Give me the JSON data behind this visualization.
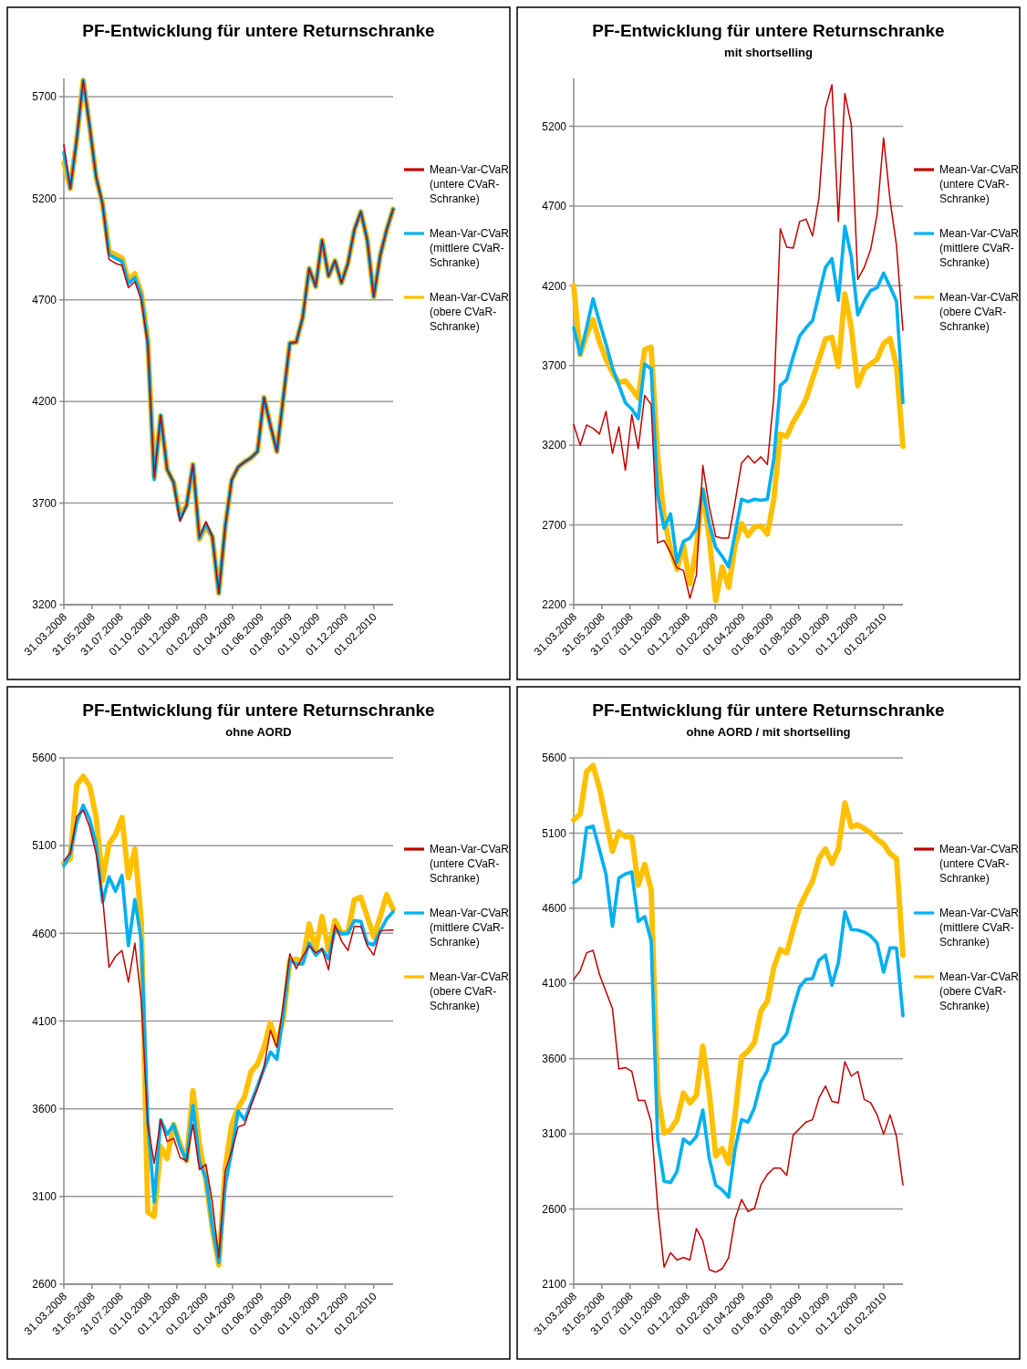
{
  "chart_data": [
    {
      "type": "line",
      "title": "PF-Entwicklung für untere Returnschranke",
      "x": [
        "2008-03-31",
        "2008-04-14",
        "2008-04-28",
        "2008-05-12",
        "2008-05-26",
        "2008-06-09",
        "2008-06-23",
        "2008-07-07",
        "2008-07-21",
        "2008-08-04",
        "2008-08-18",
        "2008-09-01",
        "2008-09-15",
        "2008-09-29",
        "2008-10-13",
        "2008-10-27",
        "2008-11-10",
        "2008-11-24",
        "2008-12-08",
        "2008-12-22",
        "2009-01-05",
        "2009-01-19",
        "2009-02-02",
        "2009-02-16",
        "2009-03-02",
        "2009-03-16",
        "2009-03-30",
        "2009-04-13",
        "2009-04-27",
        "2009-05-11",
        "2009-05-25",
        "2009-06-08",
        "2009-06-22",
        "2009-07-06",
        "2009-07-20",
        "2009-08-03",
        "2009-08-17",
        "2009-08-31",
        "2009-09-14",
        "2009-09-28",
        "2009-10-12",
        "2009-10-26",
        "2009-11-09",
        "2009-11-23",
        "2009-12-07",
        "2009-12-21",
        "2010-01-04",
        "2010-01-18",
        "2010-02-01",
        "2010-02-15",
        "2010-03-01",
        "2010-03-15"
      ],
      "xlim": [
        "2008-03-31",
        "2010-03-15"
      ],
      "xticks": [
        {
          "value": "2008-03-31",
          "label": "31.03.2008"
        },
        {
          "value": "2008-05-31",
          "label": "31.05.2008"
        },
        {
          "value": "2008-07-31",
          "label": "31.07.2008"
        },
        {
          "value": "2008-10-01",
          "label": "01.10.2008"
        },
        {
          "value": "2008-12-01",
          "label": "01.12.2008"
        },
        {
          "value": "2009-02-01",
          "label": "01.02.2009"
        },
        {
          "value": "2009-04-01",
          "label": "01.04.2009"
        },
        {
          "value": "2009-06-01",
          "label": "01.06.2009"
        },
        {
          "value": "2009-08-01",
          "label": "01.08.2009"
        },
        {
          "value": "2009-10-01",
          "label": "01.10.2009"
        },
        {
          "value": "2009-12-01",
          "label": "01.12.2009"
        },
        {
          "value": "2010-02-01",
          "label": "01.02.2010"
        }
      ],
      "ylim": [
        3200,
        5790
      ],
      "yticks": [
        3200,
        3700,
        4200,
        4700,
        5200,
        5700
      ],
      "grid": "y",
      "legend": "right",
      "series": [
        {
          "name": "Mean-Var-CVaR (untere CVaR-Schranke)",
          "color": "#c00000",
          "values": [
            5464,
            5248,
            5492,
            5781,
            5553,
            5304,
            5172,
            4900,
            4880,
            4870,
            4760,
            4790,
            4700,
            4480,
            3827,
            4131,
            3865,
            3802,
            3610,
            3687,
            3890,
            3530,
            3610,
            3535,
            3256,
            3586,
            3814,
            3878,
            3903,
            3923,
            3954,
            4220,
            4081,
            3954,
            4220,
            4487,
            4492,
            4614,
            4855,
            4766,
            4994,
            4817,
            4893,
            4784,
            4880,
            5045,
            5134,
            4994,
            4715,
            4918,
            5045,
            5147
          ]
        },
        {
          "name": "Mean-Var-CVaR (mittlere CVaR-Schranke)",
          "color": "#00b0f0",
          "values": [
            5426,
            5248,
            5492,
            5781,
            5553,
            5304,
            5172,
            4925,
            4905,
            4890,
            4780,
            4810,
            4720,
            4490,
            3815,
            4131,
            3865,
            3802,
            3620,
            3687,
            3890,
            3526,
            3598,
            3535,
            3256,
            3586,
            3814,
            3878,
            3903,
            3923,
            3954,
            4220,
            4081,
            3954,
            4220,
            4487,
            4492,
            4614,
            4855,
            4766,
            4994,
            4817,
            4893,
            4784,
            4880,
            5045,
            5134,
            4994,
            4715,
            4918,
            5045,
            5147
          ]
        },
        {
          "name": "Mean-Var-CVaR (obere CVaR-Schranke)",
          "color": "#ffc000",
          "values": [
            5375,
            5248,
            5492,
            5781,
            5553,
            5304,
            5172,
            4939,
            4923,
            4906,
            4796,
            4829,
            4733,
            4500,
            3827,
            4131,
            3865,
            3802,
            3637,
            3687,
            3890,
            3522,
            3586,
            3535,
            3256,
            3586,
            3814,
            3878,
            3903,
            3923,
            3954,
            4220,
            4081,
            3954,
            4220,
            4487,
            4492,
            4614,
            4855,
            4766,
            4994,
            4817,
            4893,
            4784,
            4880,
            5045,
            5134,
            4994,
            4715,
            4918,
            5045,
            5147
          ]
        }
      ]
    },
    {
      "type": "line",
      "title": "PF-Entwicklung für untere Returnschranke",
      "subtitle": "mit shortselling",
      "x": [
        "2008-03-31",
        "2008-04-14",
        "2008-04-28",
        "2008-05-12",
        "2008-05-26",
        "2008-06-09",
        "2008-06-23",
        "2008-07-07",
        "2008-07-21",
        "2008-08-04",
        "2008-08-18",
        "2008-09-01",
        "2008-09-15",
        "2008-09-29",
        "2008-10-13",
        "2008-10-27",
        "2008-11-10",
        "2008-11-24",
        "2008-12-08",
        "2008-12-22",
        "2009-01-05",
        "2009-01-19",
        "2009-02-02",
        "2009-02-16",
        "2009-03-02",
        "2009-03-16",
        "2009-03-30",
        "2009-04-13",
        "2009-04-27",
        "2009-05-11",
        "2009-05-25",
        "2009-06-08",
        "2009-06-22",
        "2009-07-06",
        "2009-07-20",
        "2009-08-03",
        "2009-08-17",
        "2009-08-31",
        "2009-09-14",
        "2009-09-28",
        "2009-10-12",
        "2009-10-26",
        "2009-11-09",
        "2009-11-23",
        "2009-12-07",
        "2009-12-21",
        "2010-01-04",
        "2010-01-18",
        "2010-02-01",
        "2010-02-15",
        "2010-03-01",
        "2010-03-15"
      ],
      "xlim": [
        "2008-03-31",
        "2010-03-15"
      ],
      "xticks": [
        {
          "value": "2008-03-31",
          "label": "31.03.2008"
        },
        {
          "value": "2008-05-31",
          "label": "31.05.2008"
        },
        {
          "value": "2008-07-31",
          "label": "31.07.2008"
        },
        {
          "value": "2008-10-01",
          "label": "01.10.2008"
        },
        {
          "value": "2008-12-01",
          "label": "01.12.2008"
        },
        {
          "value": "2009-02-01",
          "label": "01.02.2009"
        },
        {
          "value": "2009-04-01",
          "label": "01.04.2009"
        },
        {
          "value": "2009-06-01",
          "label": "01.06.2009"
        },
        {
          "value": "2009-08-01",
          "label": "01.08.2009"
        },
        {
          "value": "2009-10-01",
          "label": "01.10.2009"
        },
        {
          "value": "2009-12-01",
          "label": "01.12.2009"
        },
        {
          "value": "2010-02-01",
          "label": "01.02.2010"
        }
      ],
      "ylim": [
        2200,
        5500
      ],
      "yticks": [
        2200,
        2700,
        3200,
        3700,
        4200,
        4700,
        5200
      ],
      "grid": "y",
      "legend": "right",
      "series": [
        {
          "name": "Mean-Var-CVaR (untere CVaR-Schranke)",
          "color": "#c00000",
          "values": [
            3330,
            3200,
            3327,
            3306,
            3270,
            3412,
            3149,
            3315,
            3043,
            3391,
            3179,
            3512,
            3455,
            2588,
            2603,
            2527,
            2431,
            2415,
            2240,
            2385,
            3073,
            2815,
            2627,
            2618,
            2618,
            2846,
            3088,
            3134,
            3088,
            3127,
            3079,
            3503,
            4558,
            4442,
            4436,
            4603,
            4618,
            4512,
            4755,
            5315,
            5460,
            4603,
            5406,
            5209,
            4240,
            4315,
            4427,
            4649,
            5127,
            4739,
            4452,
            3921
          ]
        },
        {
          "name": "Mean-Var-CVaR (mittlere CVaR-Schranke)",
          "color": "#00b0f0",
          "values": [
            3937,
            3770,
            3937,
            4118,
            3973,
            3836,
            3685,
            3576,
            3467,
            3427,
            3367,
            3709,
            3679,
            2891,
            2679,
            2770,
            2467,
            2597,
            2618,
            2679,
            2921,
            2709,
            2558,
            2503,
            2437,
            2649,
            2861,
            2846,
            2861,
            2855,
            2861,
            3118,
            3573,
            3612,
            3755,
            3885,
            3937,
            3982,
            4149,
            4315,
            4370,
            4109,
            4573,
            4382,
            4018,
            4103,
            4170,
            4188,
            4279,
            4194,
            4103,
            3467
          ]
        },
        {
          "name": "Mean-Var-CVaR (obere CVaR-Schranke)",
          "color": "#ffc000",
          "values": [
            4200,
            3770,
            3891,
            3988,
            3846,
            3740,
            3655,
            3594,
            3603,
            3552,
            3497,
            3800,
            3815,
            3134,
            2755,
            2543,
            2422,
            2573,
            2330,
            2558,
            2921,
            2618,
            2225,
            2437,
            2309,
            2573,
            2709,
            2634,
            2688,
            2694,
            2643,
            2861,
            3270,
            3255,
            3346,
            3412,
            3491,
            3618,
            3739,
            3867,
            3876,
            3694,
            4149,
            3936,
            3573,
            3679,
            3709,
            3740,
            3836,
            3870,
            3694,
            3194
          ]
        }
      ]
    },
    {
      "type": "line",
      "title": "PF-Entwicklung für untere Returnschranke",
      "subtitle": "ohne AORD",
      "x": [
        "2008-03-31",
        "2008-04-14",
        "2008-04-28",
        "2008-05-12",
        "2008-05-26",
        "2008-06-09",
        "2008-06-23",
        "2008-07-07",
        "2008-07-21",
        "2008-08-04",
        "2008-08-18",
        "2008-09-01",
        "2008-09-15",
        "2008-09-29",
        "2008-10-13",
        "2008-10-27",
        "2008-11-10",
        "2008-11-24",
        "2008-12-08",
        "2008-12-22",
        "2009-01-05",
        "2009-01-19",
        "2009-02-02",
        "2009-02-16",
        "2009-03-02",
        "2009-03-16",
        "2009-03-30",
        "2009-04-13",
        "2009-04-27",
        "2009-05-11",
        "2009-05-25",
        "2009-06-08",
        "2009-06-22",
        "2009-07-06",
        "2009-07-20",
        "2009-08-03",
        "2009-08-17",
        "2009-08-31",
        "2009-09-14",
        "2009-09-28",
        "2009-10-12",
        "2009-10-26",
        "2009-11-09",
        "2009-11-23",
        "2009-12-07",
        "2009-12-21",
        "2010-01-04",
        "2010-01-18",
        "2010-02-01",
        "2010-02-15",
        "2010-03-01",
        "2010-03-15"
      ],
      "xlim": [
        "2008-03-31",
        "2010-03-15"
      ],
      "xticks": [
        {
          "value": "2008-03-31",
          "label": "31.03.2008"
        },
        {
          "value": "2008-05-31",
          "label": "31.05.2008"
        },
        {
          "value": "2008-07-31",
          "label": "31.07.2008"
        },
        {
          "value": "2008-10-01",
          "label": "01.10.2008"
        },
        {
          "value": "2008-12-01",
          "label": "01.12.2008"
        },
        {
          "value": "2009-02-01",
          "label": "01.02.2009"
        },
        {
          "value": "2009-04-01",
          "label": "01.04.2009"
        },
        {
          "value": "2009-06-01",
          "label": "01.06.2009"
        },
        {
          "value": "2009-08-01",
          "label": "01.08.2009"
        },
        {
          "value": "2009-10-01",
          "label": "01.10.2009"
        },
        {
          "value": "2009-12-01",
          "label": "01.12.2009"
        },
        {
          "value": "2010-02-01",
          "label": "01.02.2010"
        }
      ],
      "ylim": [
        2600,
        5600
      ],
      "yticks": [
        2600,
        3100,
        3600,
        4100,
        4600,
        5100,
        5600
      ],
      "grid": "y",
      "legend": "right",
      "series": [
        {
          "name": "Mean-Var-CVaR (untere CVaR-Schranke)",
          "color": "#c00000",
          "values": [
            5013,
            5059,
            5266,
            5302,
            5206,
            5054,
            4806,
            4406,
            4469,
            4502,
            4323,
            4544,
            4213,
            3510,
            3289,
            3537,
            3413,
            3432,
            3322,
            3303,
            3510,
            3253,
            3283,
            3068,
            2751,
            3247,
            3358,
            3496,
            3510,
            3620,
            3716,
            3840,
            4047,
            3951,
            4199,
            4483,
            4398,
            4469,
            4530,
            4489,
            4511,
            4392,
            4648,
            4557,
            4502,
            4640,
            4640,
            4530,
            4475,
            4613,
            4618,
            4618
          ]
        },
        {
          "name": "Mean-Var-CVaR (mittlere CVaR-Schranke)",
          "color": "#00b0f0",
          "values": [
            4985,
            5054,
            5233,
            5330,
            5252,
            5109,
            4778,
            4922,
            4839,
            4930,
            4530,
            4792,
            4557,
            3537,
            3068,
            3537,
            3454,
            3510,
            3385,
            3303,
            3620,
            3297,
            3206,
            2930,
            2723,
            3165,
            3358,
            3587,
            3537,
            3634,
            3730,
            3827,
            3923,
            3882,
            4144,
            4447,
            4425,
            4425,
            4544,
            4475,
            4511,
            4453,
            4626,
            4599,
            4599,
            4673,
            4668,
            4544,
            4535,
            4613,
            4682,
            4723
          ]
        },
        {
          "name": "Mean-Var-CVaR (obere CVaR-Schranke)",
          "color": "#ffc000",
          "values": [
            4999,
            5026,
            5446,
            5495,
            5440,
            5261,
            4902,
            5109,
            5164,
            5261,
            4916,
            5081,
            4668,
            3013,
            2986,
            3385,
            3316,
            3510,
            3399,
            3303,
            3703,
            3399,
            3192,
            2916,
            2709,
            3261,
            3510,
            3606,
            3669,
            3813,
            3854,
            3951,
            4089,
            3965,
            4116,
            4447,
            4453,
            4442,
            4654,
            4502,
            4695,
            4502,
            4673,
            4599,
            4607,
            4792,
            4806,
            4695,
            4580,
            4695,
            4820,
            4737
          ]
        }
      ]
    },
    {
      "type": "line",
      "title": "PF-Entwicklung für untere Returnschranke",
      "subtitle": "ohne AORD / mit shortselling",
      "x": [
        "2008-03-31",
        "2008-04-14",
        "2008-04-28",
        "2008-05-12",
        "2008-05-26",
        "2008-06-09",
        "2008-06-23",
        "2008-07-07",
        "2008-07-21",
        "2008-08-04",
        "2008-08-18",
        "2008-09-01",
        "2008-09-15",
        "2008-09-29",
        "2008-10-13",
        "2008-10-27",
        "2008-11-10",
        "2008-11-24",
        "2008-12-08",
        "2008-12-22",
        "2009-01-05",
        "2009-01-19",
        "2009-02-02",
        "2009-02-16",
        "2009-03-02",
        "2009-03-16",
        "2009-03-30",
        "2009-04-13",
        "2009-04-27",
        "2009-05-11",
        "2009-05-25",
        "2009-06-08",
        "2009-06-22",
        "2009-07-06",
        "2009-07-20",
        "2009-08-03",
        "2009-08-17",
        "2009-08-31",
        "2009-09-14",
        "2009-09-28",
        "2009-10-12",
        "2009-10-26",
        "2009-11-09",
        "2009-11-23",
        "2009-12-07",
        "2009-12-21",
        "2010-01-04",
        "2010-01-18",
        "2010-02-01",
        "2010-02-15",
        "2010-03-01",
        "2010-03-15"
      ],
      "xlim": [
        "2008-03-31",
        "2010-03-15"
      ],
      "xticks": [
        {
          "value": "2008-03-31",
          "label": "31.03.2008"
        },
        {
          "value": "2008-05-31",
          "label": "31.05.2008"
        },
        {
          "value": "2008-07-31",
          "label": "31.07.2008"
        },
        {
          "value": "2008-10-01",
          "label": "01.10.2008"
        },
        {
          "value": "2008-12-01",
          "label": "01.12.2008"
        },
        {
          "value": "2009-02-01",
          "label": "01.02.2009"
        },
        {
          "value": "2009-04-01",
          "label": "01.04.2009"
        },
        {
          "value": "2009-06-01",
          "label": "01.06.2009"
        },
        {
          "value": "2009-08-01",
          "label": "01.08.2009"
        },
        {
          "value": "2009-10-01",
          "label": "01.10.2009"
        },
        {
          "value": "2009-12-01",
          "label": "01.12.2009"
        },
        {
          "value": "2010-02-01",
          "label": "01.02.2010"
        }
      ],
      "ylim": [
        2100,
        5600
      ],
      "yticks": [
        2100,
        2600,
        3100,
        3600,
        4100,
        4600,
        5100,
        5600
      ],
      "grid": "y",
      "legend": "right",
      "series": [
        {
          "name": "Mean-Var-CVaR (untere CVaR-Schranke)",
          "color": "#c00000",
          "values": [
            4127,
            4185,
            4304,
            4320,
            4159,
            4046,
            3934,
            3531,
            3541,
            3515,
            3322,
            3322,
            3178,
            2615,
            2213,
            2309,
            2261,
            2277,
            2261,
            2470,
            2389,
            2196,
            2180,
            2203,
            2277,
            2534,
            2663,
            2583,
            2605,
            2760,
            2830,
            2872,
            2872,
            2824,
            3091,
            3136,
            3178,
            3194,
            3338,
            3419,
            3316,
            3306,
            3580,
            3483,
            3515,
            3329,
            3306,
            3226,
            3097,
            3226,
            3081,
            2759
          ]
        },
        {
          "name": "Mean-Var-CVaR (mittlere CVaR-Schranke)",
          "color": "#00b0f0",
          "values": [
            4770,
            4802,
            5134,
            5146,
            4989,
            4825,
            4480,
            4802,
            4828,
            4841,
            4513,
            4545,
            4384,
            3065,
            2785,
            2776,
            2850,
            3065,
            3033,
            3081,
            3258,
            2936,
            2759,
            2727,
            2679,
            3001,
            3194,
            3178,
            3274,
            3445,
            3522,
            3692,
            3715,
            3766,
            3934,
            4078,
            4127,
            4133,
            4255,
            4288,
            4088,
            4239,
            4577,
            4458,
            4455,
            4442,
            4416,
            4368,
            4175,
            4336,
            4336,
            3885
          ]
        },
        {
          "name": "Mean-Var-CVaR (obere CVaR-Schranke)",
          "color": "#ffc000",
          "values": [
            5188,
            5227,
            5510,
            5549,
            5397,
            5188,
            4979,
            5108,
            5076,
            5076,
            4754,
            4892,
            4722,
            3371,
            3104,
            3129,
            3194,
            3371,
            3306,
            3355,
            3683,
            3371,
            2952,
            3001,
            2904,
            3226,
            3612,
            3650,
            3708,
            3918,
            3982,
            4207,
            4326,
            4304,
            4464,
            4609,
            4699,
            4780,
            4931,
            4995,
            4899,
            4995,
            5301,
            5140,
            5156,
            5130,
            5101,
            5059,
            5027,
            4963,
            4931,
            4287
          ]
        }
      ]
    }
  ]
}
